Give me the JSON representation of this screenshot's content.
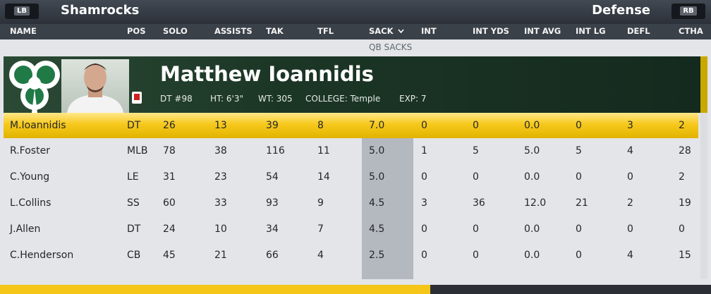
{
  "topbar": {
    "left_bumper": "LB",
    "right_bumper": "RB",
    "team": "Shamrocks",
    "category": "Defense"
  },
  "columns": [
    "NAME",
    "POS",
    "SOLO",
    "ASSISTS",
    "TAK",
    "TFL",
    "SACK",
    "INT",
    "INT YDS",
    "INT AVG",
    "INT LG",
    "DEFL",
    "CTHA"
  ],
  "sort_column_label": "QB SACKS",
  "player_card": {
    "name": "Matthew Ioannidis",
    "position_number": "DT #98",
    "height": "HT: 6'3\"",
    "weight": "WT: 305",
    "college": "COLLEGE: Temple",
    "experience": "EXP: 7"
  },
  "rows": [
    {
      "name": "M.Ioannidis",
      "pos": "DT",
      "solo": "26",
      "assists": "13",
      "tak": "39",
      "tfl": "8",
      "sack": "7.0",
      "int": "0",
      "int_yds": "0",
      "int_avg": "0.0",
      "int_lg": "0",
      "defl": "3",
      "ctha": "2",
      "selected": true
    },
    {
      "name": "R.Foster",
      "pos": "MLB",
      "solo": "78",
      "assists": "38",
      "tak": "116",
      "tfl": "11",
      "sack": "5.0",
      "int": "1",
      "int_yds": "5",
      "int_avg": "5.0",
      "int_lg": "5",
      "defl": "4",
      "ctha": "28"
    },
    {
      "name": "C.Young",
      "pos": "LE",
      "solo": "31",
      "assists": "23",
      "tak": "54",
      "tfl": "14",
      "sack": "5.0",
      "int": "0",
      "int_yds": "0",
      "int_avg": "0.0",
      "int_lg": "0",
      "defl": "0",
      "ctha": "2"
    },
    {
      "name": "L.Collins",
      "pos": "SS",
      "solo": "60",
      "assists": "33",
      "tak": "93",
      "tfl": "9",
      "sack": "4.5",
      "int": "3",
      "int_yds": "36",
      "int_avg": "12.0",
      "int_lg": "21",
      "defl": "2",
      "ctha": "19"
    },
    {
      "name": "J.Allen",
      "pos": "DT",
      "solo": "24",
      "assists": "10",
      "tak": "34",
      "tfl": "7",
      "sack": "4.5",
      "int": "0",
      "int_yds": "0",
      "int_avg": "0.0",
      "int_lg": "0",
      "defl": "0",
      "ctha": "0"
    },
    {
      "name": "C.Henderson",
      "pos": "CB",
      "solo": "45",
      "assists": "21",
      "tak": "66",
      "tfl": "4",
      "sack": "2.5",
      "int": "0",
      "int_yds": "0",
      "int_avg": "0.0",
      "int_lg": "0",
      "defl": "4",
      "ctha": "15"
    }
  ],
  "scroll_progress": 0.605,
  "colors": {
    "accent": "#f5c518",
    "banner": "#1c3626",
    "header_bar": "#3b4149",
    "sort_column": "#b4b8bf"
  },
  "icons": {
    "team_logo": "shamrock-logo-icon",
    "league": "nfl-shield-icon",
    "sort": "chevron-down-icon"
  }
}
